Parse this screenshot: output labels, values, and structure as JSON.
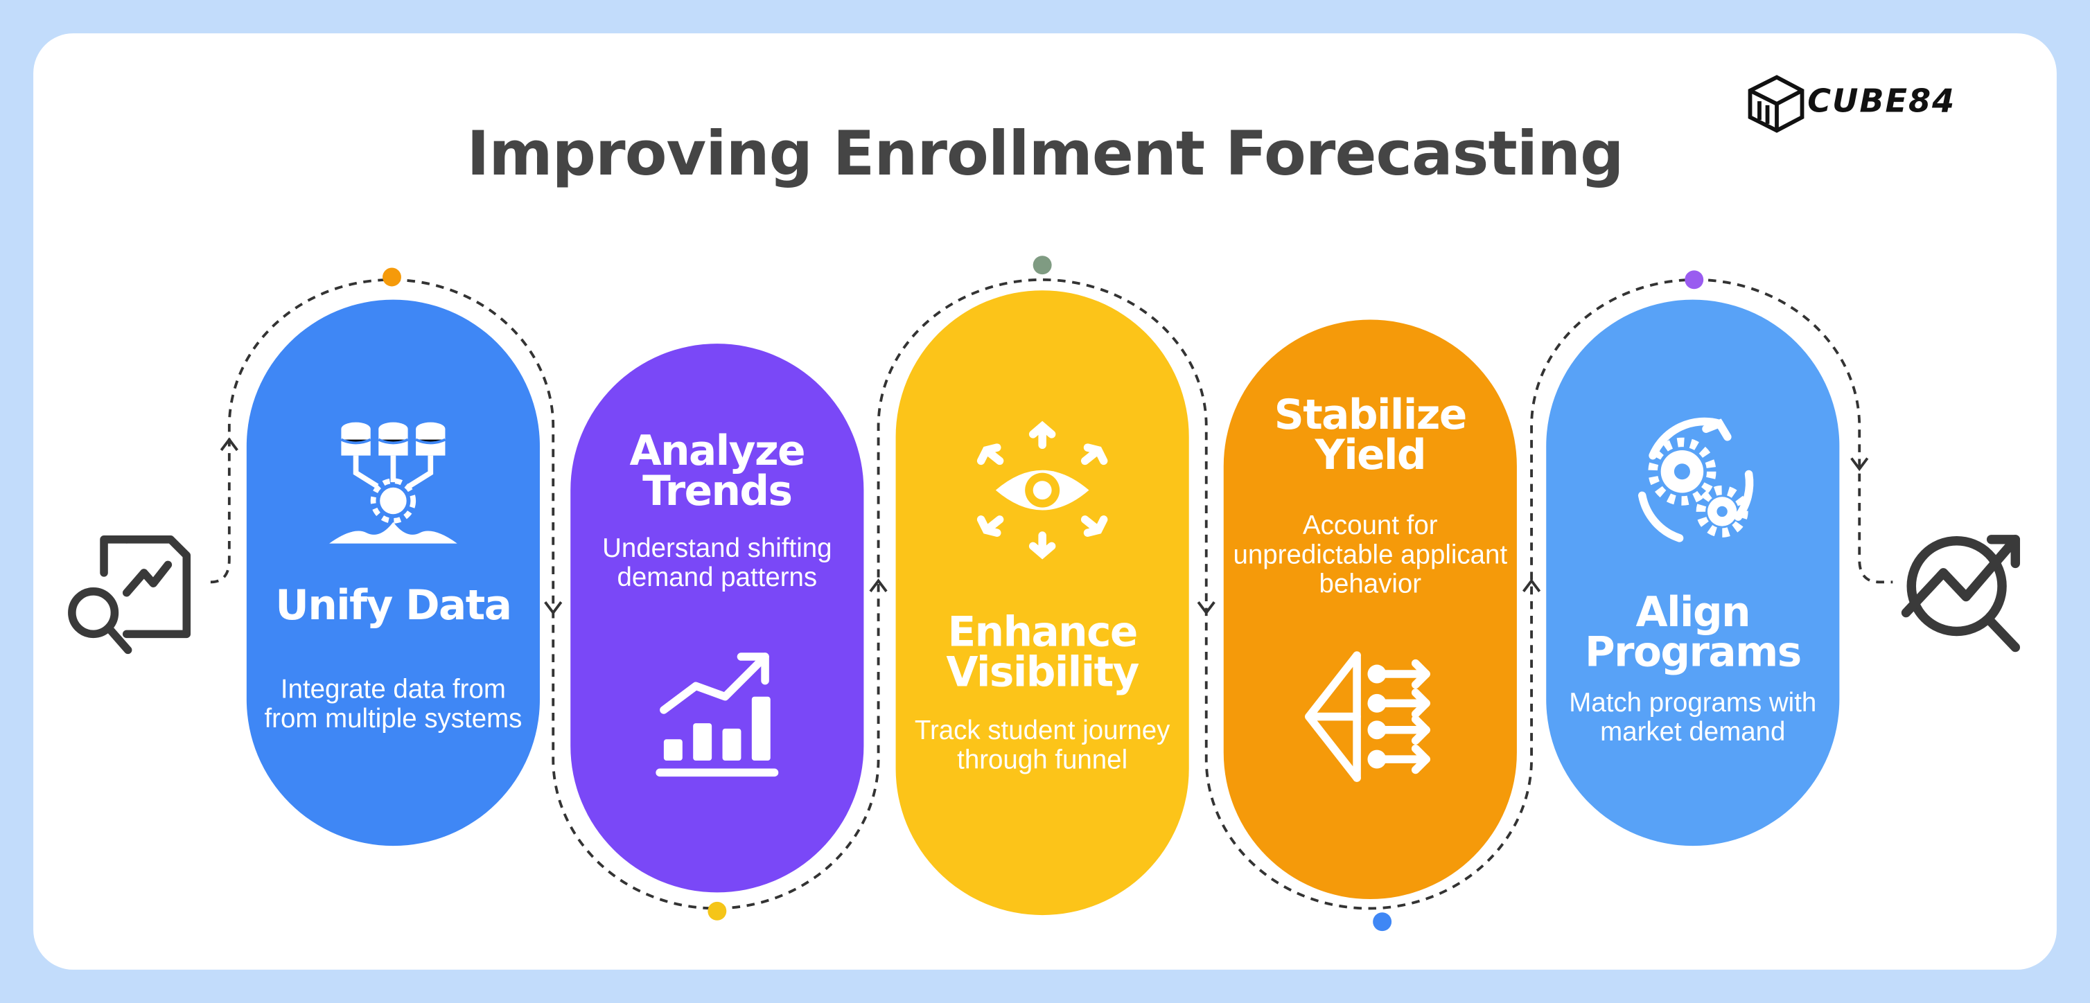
{
  "header": {
    "title": "Improving Enrollment Forecasting",
    "brand": "CUBE84"
  },
  "steps": [
    {
      "title": "Unify Data",
      "description": "Integrate data from from multiple systems"
    },
    {
      "title": "Analyze Trends",
      "description": "Understand shifting demand patterns"
    },
    {
      "title": "Enhance Visibility",
      "description": "Track student journey through funnel"
    },
    {
      "title": "Stabilize Yield",
      "description": "Account for unpredictable applicant behavior"
    },
    {
      "title": "Align Programs",
      "description": "Match programs with market demand"
    }
  ]
}
